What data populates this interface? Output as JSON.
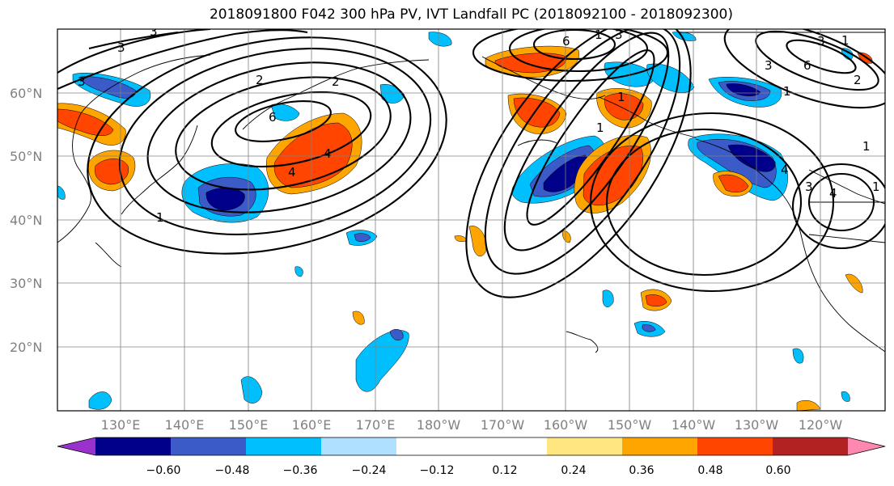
{
  "title": "2018091800 F042 300 hPa PV, IVT Landfall PC (2018092100 - 2018092300)",
  "lat_labels": [
    "60°N",
    "50°N",
    "40°N",
    "30°N",
    "20°N"
  ],
  "lon_labels": [
    "130°E",
    "140°E",
    "150°E",
    "160°E",
    "170°E",
    "180°W",
    "170°W",
    "160°W",
    "150°W",
    "140°W",
    "130°W",
    "120°W"
  ],
  "colorbar": {
    "colors": [
      "#9932cc",
      "#00008b",
      "#3a5bc8",
      "#00bfff",
      "#b0e0ff",
      "#ffffff",
      "#ffffff",
      "#ffe680",
      "#ffa500",
      "#ff4500",
      "#b22222",
      "#ff88b0"
    ],
    "tick_labels": [
      "−0.60",
      "−0.48",
      "−0.36",
      "−0.24",
      "−0.12",
      "0.12",
      "0.24",
      "0.36",
      "0.48",
      "0.60"
    ]
  },
  "contour_labels": [
    "3",
    "3",
    "3",
    "2",
    "1",
    "6",
    "2",
    "4",
    "4",
    "3",
    "1",
    "6",
    "1",
    "1",
    "1",
    "3",
    "6",
    "3",
    "1",
    "1",
    "2",
    "4",
    "3",
    "4",
    "1"
  ],
  "colors": {
    "grid": "#808080",
    "contour": "#000000",
    "positive_strong": "#ff4500",
    "negative_strong": "#00008b"
  }
}
